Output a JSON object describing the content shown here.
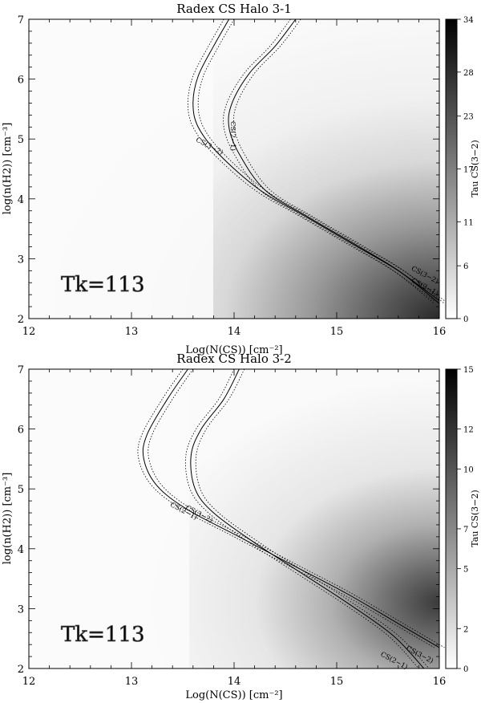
{
  "chart_data": [
    {
      "type": "heatmap",
      "title": "Radex CS Halo 3-1",
      "xlabel": "Log(N(CS)) [cm⁻²]",
      "ylabel": "log(n(H2)) [cm⁻³]",
      "xlim": [
        12,
        16
      ],
      "ylim": [
        2,
        7
      ],
      "xticks": [
        "12",
        "13",
        "14",
        "15",
        "16"
      ],
      "yticks": [
        "2",
        "3",
        "4",
        "5",
        "6",
        "7"
      ],
      "colorbar_label": "Tau CS(3−2)",
      "colorbar_range": [
        0,
        34
      ],
      "colorbar_ticks": [
        "0",
        "6",
        "11",
        "17",
        "23",
        "28",
        "34"
      ],
      "annotation": "Tk=113",
      "series": [
        {
          "label": "CS(3−2)",
          "label_pos": [
            13.75,
            4.85
          ],
          "points": [
            [
              13.95,
              7.0
            ],
            [
              13.8,
              6.55
            ],
            [
              13.65,
              6.05
            ],
            [
              13.6,
              5.6
            ],
            [
              13.65,
              5.2
            ],
            [
              13.85,
              4.75
            ],
            [
              14.25,
              4.15
            ],
            [
              14.7,
              3.7
            ],
            [
              15.2,
              3.2
            ],
            [
              15.6,
              2.8
            ],
            [
              16.0,
              2.3
            ]
          ]
        },
        {
          "label": "CS(2−1)",
          "label_pos": [
            13.97,
            5.05
          ],
          "points": [
            [
              14.6,
              7.0
            ],
            [
              14.4,
              6.55
            ],
            [
              14.15,
              6.1
            ],
            [
              13.98,
              5.6
            ],
            [
              13.95,
              5.2
            ],
            [
              14.05,
              4.75
            ],
            [
              14.3,
              4.15
            ],
            [
              14.72,
              3.7
            ],
            [
              15.22,
              3.2
            ],
            [
              15.62,
              2.78
            ],
            [
              16.0,
              2.25
            ]
          ]
        }
      ],
      "contour_labels_right": [
        "CS(3−2)",
        "CS(2−1)"
      ],
      "right_label_pos": [
        [
          15.85,
          2.7
        ],
        [
          15.85,
          2.5
        ]
      ],
      "peak_value": 34
    },
    {
      "type": "heatmap",
      "title": "Radex CS Halo 3-2",
      "xlabel": "Log(N(CS)) [cm⁻²]",
      "ylabel": "log(n(H2)) [cm⁻³]",
      "xlim": [
        12,
        16
      ],
      "ylim": [
        2,
        7
      ],
      "xticks": [
        "12",
        "13",
        "14",
        "15",
        "16"
      ],
      "yticks": [
        "2",
        "3",
        "4",
        "5",
        "6",
        "7"
      ],
      "colorbar_label": "Tau CS(3−2)",
      "colorbar_range": [
        0,
        15
      ],
      "colorbar_ticks": [
        "0",
        "2",
        "5",
        "7",
        "10",
        "12",
        "15"
      ],
      "annotation": "Tk=113",
      "series": [
        {
          "label": "CS(3−2)",
          "label_pos": [
            13.65,
            4.55
          ],
          "points": [
            [
              13.55,
              7.0
            ],
            [
              13.35,
              6.5
            ],
            [
              13.15,
              5.9
            ],
            [
              13.12,
              5.5
            ],
            [
              13.25,
              5.05
            ],
            [
              13.55,
              4.65
            ],
            [
              14.05,
              4.2
            ],
            [
              14.6,
              3.7
            ],
            [
              15.1,
              3.25
            ],
            [
              15.6,
              2.75
            ],
            [
              16.0,
              2.35
            ]
          ]
        },
        {
          "label": "CS(2−1)",
          "label_pos": [
            13.5,
            4.6
          ],
          "points": [
            [
              14.05,
              7.0
            ],
            [
              13.9,
              6.5
            ],
            [
              13.68,
              6.0
            ],
            [
              13.58,
              5.55
            ],
            [
              13.62,
              5.0
            ],
            [
              13.8,
              4.6
            ],
            [
              14.2,
              4.1
            ],
            [
              14.65,
              3.6
            ],
            [
              15.1,
              3.1
            ],
            [
              15.55,
              2.55
            ],
            [
              15.85,
              2.0
            ]
          ]
        }
      ],
      "contour_labels_right": [
        "CS(3−2)",
        "CS(2−1)"
      ],
      "right_label_pos": [
        [
          15.8,
          2.2
        ],
        [
          15.55,
          2.1
        ]
      ],
      "peak_value": 15
    }
  ]
}
